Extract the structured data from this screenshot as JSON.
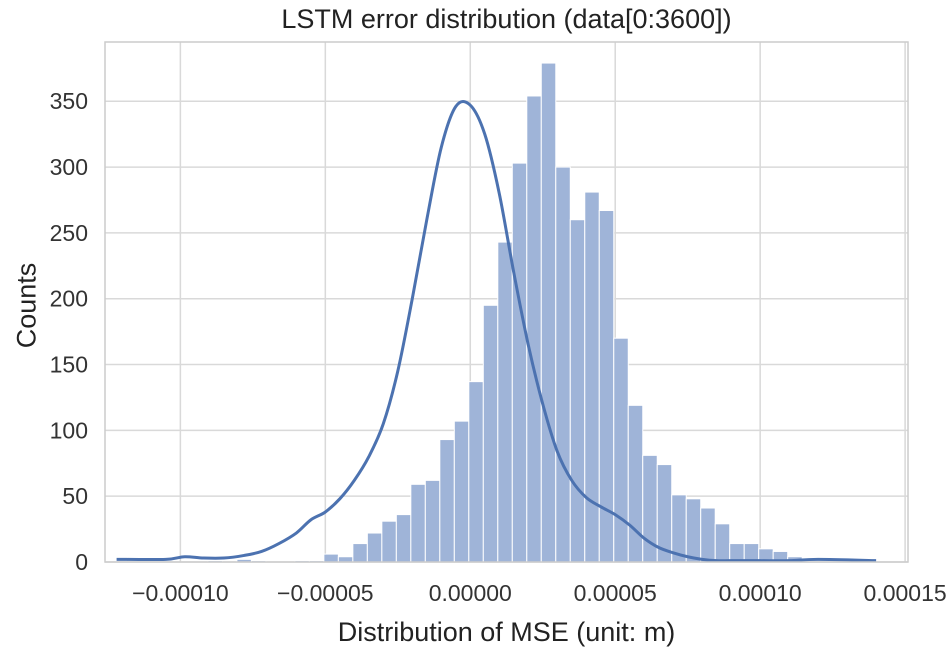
{
  "chart_data": {
    "type": "bar",
    "title": "LSTM error distribution (data[0:3600])",
    "xlabel": "Distribution of MSE (unit: m)",
    "ylabel": "Counts",
    "xlim": [
      -0.000126,
      0.000151
    ],
    "ylim": [
      0,
      395
    ],
    "grid": true,
    "x_ticks": [
      -0.0001,
      -5e-05,
      0.0,
      5e-05,
      0.0001,
      0.00015
    ],
    "x_tick_labels": [
      "−0.00010",
      "−0.00005",
      "0.00000",
      "0.00005",
      "0.00010",
      "0.00015"
    ],
    "y_ticks": [
      0,
      50,
      100,
      150,
      200,
      250,
      300,
      350
    ],
    "y_tick_labels": [
      "0",
      "50",
      "100",
      "150",
      "200",
      "250",
      "300",
      "350"
    ],
    "bin_start": -9.05e-05,
    "bin_width": 5e-06,
    "bin_counts": [
      1,
      0,
      2,
      1,
      0,
      0,
      1,
      1,
      6,
      4,
      14,
      22,
      31,
      36,
      59,
      62,
      93,
      107,
      137,
      195,
      243,
      303,
      354,
      379,
      300,
      260,
      281,
      267,
      170,
      119,
      81,
      74,
      51,
      48,
      41,
      29,
      14,
      14,
      10,
      8,
      4
    ],
    "kde_curve": {
      "x": [
        -0.000122,
        -0.000105,
        -9.85e-05,
        -9.2e-05,
        -8.5e-05,
        -7.8e-05,
        -7.2e-05,
        -6.6e-05,
        -6e-05,
        -5.5e-05,
        -5e-05,
        -4.5e-05,
        -4e-05,
        -3.5e-05,
        -3e-05,
        -2.5e-05,
        -2e-05,
        -1.5e-05,
        -1e-05,
        -5e-06,
        0.0,
        5e-06,
        1e-05,
        1.5e-05,
        2e-05,
        2.5e-05,
        3e-05,
        3.5e-05,
        4e-05,
        4.5e-05,
        5e-05,
        5.5e-05,
        6e-05,
        6.5e-05,
        7e-05,
        7.5e-05,
        8e-05,
        8.5e-05,
        9e-05,
        0.0001,
        0.00011,
        0.00012,
        0.00014
      ],
      "y": [
        2,
        2,
        4,
        3,
        3,
        5,
        8,
        14,
        22,
        32,
        38,
        48,
        62,
        80,
        105,
        145,
        200,
        260,
        315,
        346,
        347,
        325,
        280,
        220,
        165,
        120,
        84,
        62,
        49,
        42,
        36,
        28,
        18,
        11,
        7,
        4,
        2,
        1,
        1,
        1,
        1,
        2,
        1
      ]
    },
    "bar_color": "#9fb4d8",
    "line_color": "#4c72b0"
  }
}
